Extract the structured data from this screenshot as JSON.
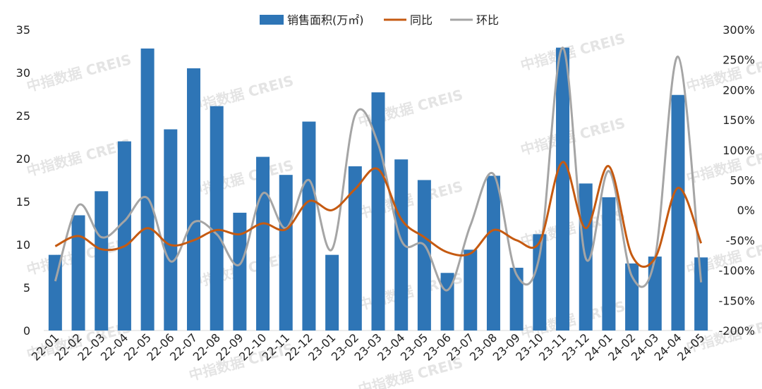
{
  "watermark": "中指数据 CREIS",
  "chart_data": {
    "type": "bar",
    "categories": [
      "22-01",
      "22-02",
      "22-03",
      "22-04",
      "22-05",
      "22-06",
      "22-07",
      "22-08",
      "22-09",
      "22-10",
      "22-11",
      "22-12",
      "23-01",
      "23-02",
      "23-03",
      "23-04",
      "23-05",
      "23-06",
      "23-07",
      "23-08",
      "23-09",
      "23-10",
      "23-11",
      "23-12",
      "24-01",
      "24-02",
      "24-03",
      "24-04",
      "24-05"
    ],
    "series": [
      {
        "name": "销售面积(万㎡)",
        "type": "bar",
        "axis": "left",
        "color": "#2E75B6",
        "values": [
          8.8,
          13.4,
          16.2,
          22.0,
          32.8,
          23.4,
          30.5,
          26.1,
          13.7,
          20.2,
          18.1,
          24.3,
          8.8,
          19.1,
          27.7,
          19.9,
          17.5,
          6.7,
          9.4,
          18.0,
          7.3,
          11.2,
          32.9,
          17.1,
          15.5,
          7.8,
          8.6,
          27.4,
          8.5
        ]
      },
      {
        "name": "同比",
        "type": "line",
        "axis": "right",
        "color": "#C55A11",
        "values": [
          -60,
          -43,
          -65,
          -60,
          -30,
          -58,
          -50,
          -33,
          -40,
          -22,
          -32,
          15,
          0,
          35,
          68,
          -15,
          -45,
          -70,
          -72,
          -33,
          -50,
          -53,
          80,
          -30,
          73,
          -75,
          -80,
          37,
          -55
        ]
      },
      {
        "name": "环比",
        "type": "line",
        "axis": "right",
        "color": "#A5A5A5",
        "values": [
          -118,
          8,
          -45,
          -18,
          20,
          -85,
          -20,
          -40,
          -90,
          28,
          -30,
          50,
          -65,
          158,
          110,
          -50,
          -58,
          -133,
          -25,
          60,
          -107,
          -75,
          270,
          -80,
          65,
          -110,
          -80,
          255,
          -120
        ]
      }
    ],
    "y_left": {
      "min": 0,
      "max": 35,
      "ticks": [
        "0",
        "5",
        "10",
        "15",
        "20",
        "25",
        "30",
        "35"
      ]
    },
    "y_right": {
      "min": -200,
      "max": 300,
      "ticks": [
        "-200%",
        "-150%",
        "-100%",
        "-50%",
        "0%",
        "50%",
        "100%",
        "150%",
        "200%",
        "250%",
        "300%"
      ]
    },
    "grid": false,
    "legend_position": "top"
  }
}
